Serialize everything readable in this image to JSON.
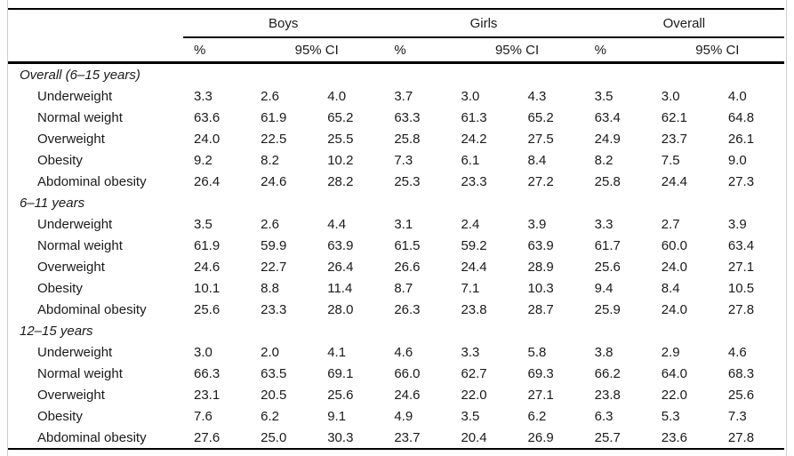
{
  "table": {
    "groups": [
      {
        "label": "Boys"
      },
      {
        "label": "Girls"
      },
      {
        "label": "Overall"
      }
    ],
    "subheaders": {
      "pct": "%",
      "ci": "95% CI"
    },
    "sections": [
      {
        "title": "Overall (6–15 years)",
        "rows": [
          {
            "label": "Underweight",
            "boys": [
              "3.3",
              "2.6",
              "4.0"
            ],
            "girls": [
              "3.7",
              "3.0",
              "4.3"
            ],
            "overall": [
              "3.5",
              "3.0",
              "4.0"
            ]
          },
          {
            "label": "Normal weight",
            "boys": [
              "63.6",
              "61.9",
              "65.2"
            ],
            "girls": [
              "63.3",
              "61.3",
              "65.2"
            ],
            "overall": [
              "63.4",
              "62.1",
              "64.8"
            ]
          },
          {
            "label": "Overweight",
            "boys": [
              "24.0",
              "22.5",
              "25.5"
            ],
            "girls": [
              "25.8",
              "24.2",
              "27.5"
            ],
            "overall": [
              "24.9",
              "23.7",
              "26.1"
            ]
          },
          {
            "label": "Obesity",
            "boys": [
              "9.2",
              "8.2",
              "10.2"
            ],
            "girls": [
              "7.3",
              "6.1",
              "8.4"
            ],
            "overall": [
              "8.2",
              "7.5",
              "9.0"
            ]
          },
          {
            "label": "Abdominal obesity",
            "boys": [
              "26.4",
              "24.6",
              "28.2"
            ],
            "girls": [
              "25.3",
              "23.3",
              "27.2"
            ],
            "overall": [
              "25.8",
              "24.4",
              "27.3"
            ]
          }
        ]
      },
      {
        "title": "6–11 years",
        "rows": [
          {
            "label": "Underweight",
            "boys": [
              "3.5",
              "2.6",
              "4.4"
            ],
            "girls": [
              "3.1",
              "2.4",
              "3.9"
            ],
            "overall": [
              "3.3",
              "2.7",
              "3.9"
            ]
          },
          {
            "label": "Normal weight",
            "boys": [
              "61.9",
              "59.9",
              "63.9"
            ],
            "girls": [
              "61.5",
              "59.2",
              "63.9"
            ],
            "overall": [
              "61.7",
              "60.0",
              "63.4"
            ]
          },
          {
            "label": "Overweight",
            "boys": [
              "24.6",
              "22.7",
              "26.4"
            ],
            "girls": [
              "26.6",
              "24.4",
              "28.9"
            ],
            "overall": [
              "25.6",
              "24.0",
              "27.1"
            ]
          },
          {
            "label": "Obesity",
            "boys": [
              "10.1",
              "8.8",
              "11.4"
            ],
            "girls": [
              "8.7",
              "7.1",
              "10.3"
            ],
            "overall": [
              "9.4",
              "8.4",
              "10.5"
            ]
          },
          {
            "label": "Abdominal obesity",
            "boys": [
              "25.6",
              "23.3",
              "28.0"
            ],
            "girls": [
              "26.3",
              "23.8",
              "28.7"
            ],
            "overall": [
              "25.9",
              "24.0",
              "27.8"
            ]
          }
        ]
      },
      {
        "title": "12–15 years",
        "rows": [
          {
            "label": "Underweight",
            "boys": [
              "3.0",
              "2.0",
              "4.1"
            ],
            "girls": [
              "4.6",
              "3.3",
              "5.8"
            ],
            "overall": [
              "3.8",
              "2.9",
              "4.6"
            ]
          },
          {
            "label": "Normal weight",
            "boys": [
              "66.3",
              "63.5",
              "69.1"
            ],
            "girls": [
              "66.0",
              "62.7",
              "69.3"
            ],
            "overall": [
              "66.2",
              "64.0",
              "68.3"
            ]
          },
          {
            "label": "Overweight",
            "boys": [
              "23.1",
              "20.5",
              "25.6"
            ],
            "girls": [
              "24.6",
              "22.0",
              "27.1"
            ],
            "overall": [
              "23.8",
              "22.0",
              "25.6"
            ]
          },
          {
            "label": "Obesity",
            "boys": [
              "7.6",
              "6.2",
              "9.1"
            ],
            "girls": [
              "4.9",
              "3.5",
              "6.2"
            ],
            "overall": [
              "6.3",
              "5.3",
              "7.3"
            ]
          },
          {
            "label": "Abdominal obesity",
            "boys": [
              "27.6",
              "25.0",
              "30.3"
            ],
            "girls": [
              "23.7",
              "20.4",
              "26.9"
            ],
            "overall": [
              "25.7",
              "23.6",
              "27.8"
            ]
          }
        ]
      }
    ],
    "colors": {
      "rule": "#000000",
      "edge_border": "#cccccc",
      "text": "#1a1a1a",
      "background": "#ffffff"
    }
  }
}
